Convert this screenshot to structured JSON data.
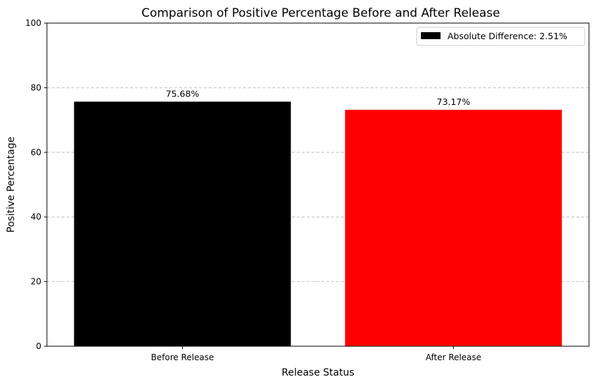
{
  "chart_data": {
    "type": "bar",
    "title": "Comparison of Positive Percentage Before and After Release",
    "xlabel": "Release Status",
    "ylabel": "Positive Percentage",
    "categories": [
      "Before Release",
      "After Release"
    ],
    "values": [
      75.68,
      73.17
    ],
    "data_labels": [
      "75.68%",
      "73.17%"
    ],
    "colors": [
      "#000000",
      "#ff0000"
    ],
    "ylim": [
      0,
      100
    ],
    "yticks": [
      0,
      20,
      40,
      60,
      80,
      100
    ],
    "grid": "y-dashed",
    "legend": {
      "position": "top-right",
      "entries": [
        {
          "label": "Absolute Difference: 2.51%",
          "color": "#000000"
        }
      ]
    }
  }
}
